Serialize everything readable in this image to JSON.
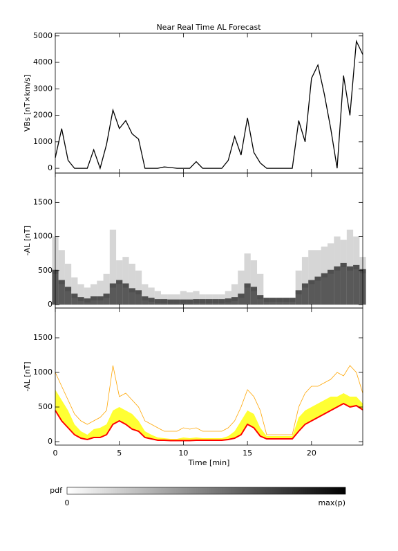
{
  "chart_data": [
    {
      "type": "line",
      "title": "Near Real Time AL Forecast",
      "ylabel": "VBs [nT×km/s]",
      "color": "#000000",
      "x": [
        0,
        0.5,
        1,
        1.5,
        2,
        2.5,
        3,
        3.5,
        4,
        4.5,
        5,
        5.5,
        6,
        6.5,
        7,
        7.5,
        8,
        8.5,
        9,
        9.5,
        10,
        10.5,
        11,
        11.5,
        12,
        12.5,
        13,
        13.5,
        14,
        14.5,
        15,
        15.5,
        16,
        16.5,
        17,
        17.5,
        18,
        18.5,
        19,
        19.5,
        20,
        20.5,
        21,
        21.5,
        22,
        22.5,
        23,
        23.5,
        24
      ],
      "values": [
        400,
        1500,
        300,
        0,
        0,
        0,
        700,
        0,
        900,
        2200,
        1500,
        1800,
        1300,
        1100,
        0,
        0,
        0,
        50,
        30,
        0,
        0,
        0,
        250,
        0,
        0,
        0,
        0,
        300,
        1200,
        500,
        1900,
        600,
        200,
        0,
        0,
        0,
        0,
        0,
        1800,
        1000,
        3400,
        3900,
        2800,
        1500,
        0,
        3500,
        2000,
        4800,
        4300
      ],
      "ylim": [
        -180,
        5100
      ],
      "yticks": [
        0,
        1000,
        2000,
        3000,
        4000,
        5000
      ]
    },
    {
      "type": "heatmap",
      "ylabel": "-AL [nT]",
      "x": [
        0,
        0.5,
        1,
        1.5,
        2,
        2.5,
        3,
        3.5,
        4,
        4.5,
        5,
        5.5,
        6,
        6.5,
        7,
        7.5,
        8,
        8.5,
        9,
        9.5,
        10,
        10.5,
        11,
        11.5,
        12,
        12.5,
        13,
        13.5,
        14,
        14.5,
        15,
        15.5,
        16,
        16.5,
        17,
        17.5,
        18,
        18.5,
        19,
        19.5,
        20,
        20.5,
        21,
        21.5,
        22,
        22.5,
        23,
        23.5,
        24
      ],
      "mode": [
        450,
        300,
        200,
        100,
        50,
        30,
        60,
        60,
        100,
        250,
        300,
        250,
        180,
        150,
        60,
        40,
        20,
        20,
        15,
        15,
        15,
        15,
        20,
        20,
        20,
        20,
        20,
        30,
        50,
        100,
        250,
        200,
        80,
        40,
        40,
        40,
        40,
        40,
        150,
        250,
        300,
        350,
        400,
        450,
        500,
        550,
        500,
        520,
        460
      ],
      "upper": [
        1000,
        800,
        600,
        400,
        300,
        250,
        300,
        350,
        450,
        1100,
        650,
        700,
        600,
        500,
        300,
        250,
        200,
        150,
        150,
        150,
        200,
        180,
        200,
        150,
        150,
        150,
        150,
        200,
        300,
        500,
        750,
        650,
        450,
        100,
        100,
        100,
        100,
        100,
        500,
        700,
        800,
        800,
        850,
        900,
        1000,
        950,
        1100,
        1000,
        700
      ],
      "ylim": [
        -50,
        1930
      ],
      "yticks": [
        0,
        500,
        1000,
        1500
      ]
    },
    {
      "type": "band",
      "ylabel": "-AL [nT]",
      "xlabel": "Time [min]",
      "x": [
        0,
        0.5,
        1,
        1.5,
        2,
        2.5,
        3,
        3.5,
        4,
        4.5,
        5,
        5.5,
        6,
        6.5,
        7,
        7.5,
        8,
        8.5,
        9,
        9.5,
        10,
        10.5,
        11,
        11.5,
        12,
        12.5,
        13,
        13.5,
        14,
        14.5,
        15,
        15.5,
        16,
        16.5,
        17,
        17.5,
        18,
        18.5,
        19,
        19.5,
        20,
        20.5,
        21,
        21.5,
        22,
        22.5,
        23,
        23.5,
        24
      ],
      "median": [
        450,
        300,
        200,
        100,
        50,
        30,
        60,
        60,
        100,
        250,
        300,
        250,
        180,
        150,
        60,
        40,
        20,
        20,
        15,
        15,
        15,
        15,
        20,
        20,
        20,
        20,
        20,
        30,
        50,
        100,
        250,
        200,
        80,
        40,
        40,
        40,
        40,
        40,
        150,
        250,
        300,
        350,
        400,
        450,
        500,
        550,
        500,
        520,
        460
      ],
      "band_upper": [
        750,
        600,
        450,
        250,
        150,
        100,
        180,
        200,
        250,
        450,
        500,
        450,
        400,
        300,
        150,
        100,
        60,
        50,
        40,
        40,
        60,
        50,
        60,
        50,
        50,
        50,
        50,
        80,
        150,
        300,
        450,
        400,
        200,
        80,
        80,
        80,
        80,
        80,
        350,
        450,
        500,
        550,
        600,
        650,
        650,
        700,
        650,
        650,
        550
      ],
      "envelope_upper": [
        1000,
        800,
        600,
        400,
        300,
        250,
        300,
        350,
        450,
        1100,
        650,
        700,
        600,
        500,
        300,
        250,
        200,
        150,
        150,
        150,
        200,
        180,
        200,
        150,
        150,
        150,
        150,
        200,
        300,
        500,
        750,
        650,
        450,
        100,
        100,
        100,
        100,
        100,
        500,
        700,
        800,
        800,
        850,
        900,
        1000,
        950,
        1100,
        1000,
        700
      ],
      "median_color": "#ff0000",
      "band_color": "#ffff33",
      "envelope_color": "#ffa500",
      "ylim": [
        -50,
        1930
      ],
      "yticks": [
        0,
        500,
        1000,
        1500
      ],
      "xlim": [
        0,
        24
      ],
      "xticks": [
        0,
        5,
        10,
        15,
        20
      ]
    }
  ],
  "colorbar": {
    "label": "pdf",
    "min_label": "0",
    "max_label": "max(p)"
  }
}
